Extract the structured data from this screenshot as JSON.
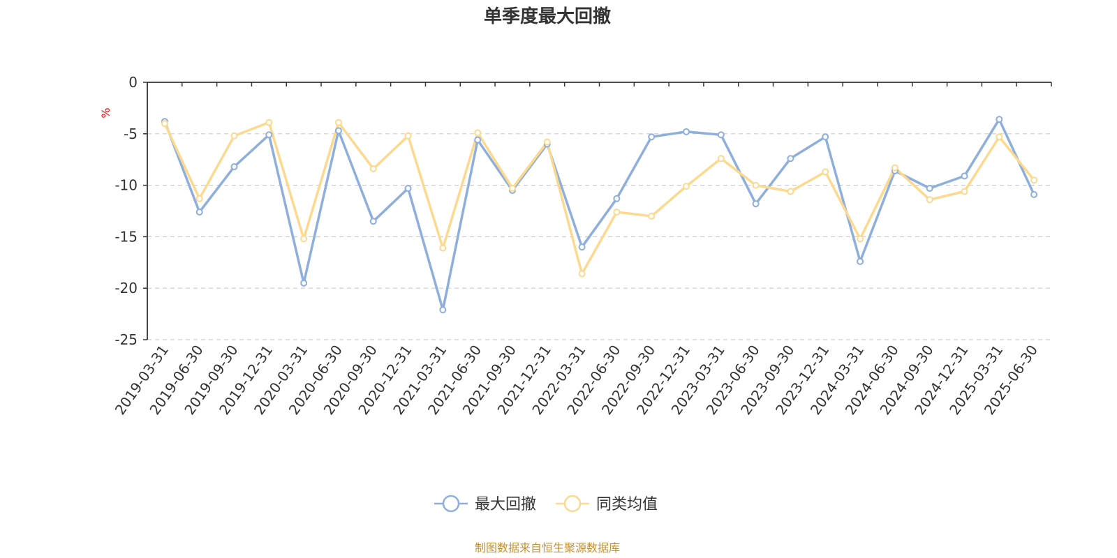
{
  "chart_data": {
    "type": "line",
    "title": "单季度最大回撤",
    "ylabel": "%",
    "ylim": [
      -25,
      0
    ],
    "yticks": [
      0,
      -5,
      -10,
      -15,
      -20,
      -25
    ],
    "grid": true,
    "legend_position": "bottom-center",
    "categories": [
      "2019-03-31",
      "2019-06-30",
      "2019-09-30",
      "2019-12-31",
      "2020-03-31",
      "2020-06-30",
      "2020-09-30",
      "2020-12-31",
      "2021-03-31",
      "2021-06-30",
      "2021-09-30",
      "2021-12-31",
      "2022-03-31",
      "2022-06-30",
      "2022-09-30",
      "2022-12-31",
      "2023-03-31",
      "2023-06-30",
      "2023-09-30",
      "2023-12-31",
      "2024-03-31",
      "2024-06-30",
      "2024-09-30",
      "2024-12-31",
      "2025-03-31",
      "2025-06-30"
    ],
    "series": [
      {
        "name": "最大回撤",
        "color": "#8eaedb",
        "values": [
          -3.8,
          -12.6,
          -8.2,
          -5.1,
          -19.5,
          -4.7,
          -13.5,
          -10.3,
          -22.1,
          -5.6,
          -10.5,
          -6.0,
          -16.0,
          -11.3,
          -5.3,
          -4.8,
          -5.1,
          -11.8,
          -7.4,
          -5.3,
          -17.4,
          -8.6,
          -10.3,
          -9.1,
          -3.6,
          -10.9
        ]
      },
      {
        "name": "同类均值",
        "color": "#fcd98f",
        "values": [
          -4.0,
          -11.3,
          -5.2,
          -3.9,
          -15.2,
          -3.9,
          -8.4,
          -5.2,
          -16.1,
          -4.9,
          -10.3,
          -5.8,
          -18.6,
          -12.6,
          -13.0,
          -10.1,
          -7.4,
          -10.0,
          -10.6,
          -8.7,
          -15.2,
          -8.3,
          -11.4,
          -10.6,
          -5.3,
          -9.5
        ]
      }
    ]
  },
  "footer": {
    "source": "制图数据来自恒生聚源数据库"
  }
}
